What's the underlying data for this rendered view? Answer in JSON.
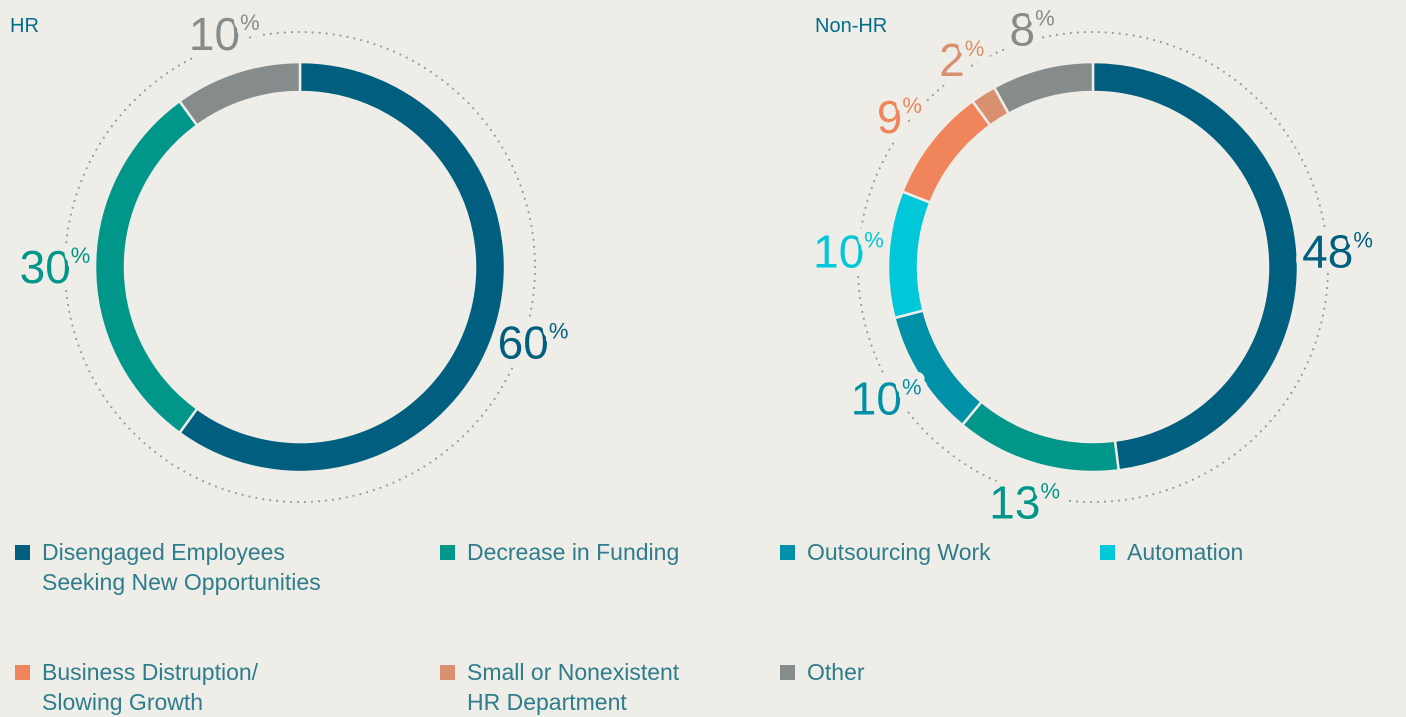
{
  "chart_data": [
    {
      "type": "pie",
      "title": "HR",
      "unit": "%",
      "categories": [
        "Disengaged Employees Seeking New Opportunities",
        "Decrease in Funding",
        "Other"
      ],
      "values": [
        60,
        30,
        10
      ],
      "colors": [
        "#005f7f",
        "#00968a",
        "#868b8b"
      ]
    },
    {
      "type": "pie",
      "title": "Non-HR",
      "unit": "%",
      "categories": [
        "Disengaged Employees Seeking New Opportunities",
        "Decrease in Funding",
        "Outsourcing Work",
        "Automation",
        "Business Distruption/ Slowing Growth",
        "Small or Nonexistent HR Department",
        "Other"
      ],
      "values": [
        48,
        13,
        10,
        10,
        9,
        2,
        8
      ],
      "colors": [
        "#005f7f",
        "#00968a",
        "#0090a8",
        "#00c8d8",
        "#f0845a",
        "#d9906e",
        "#868b8b"
      ]
    }
  ],
  "legend": {
    "items": [
      {
        "label": "Disengaged Employees\nSeeking New Opportunities",
        "color": "#005f7f"
      },
      {
        "label": "Decrease in Funding",
        "color": "#00968a"
      },
      {
        "label": "Outsourcing Work",
        "color": "#0090a8"
      },
      {
        "label": "Automation",
        "color": "#00c8d8"
      },
      {
        "label": "Business Distruption/\nSlowing Growth",
        "color": "#f0845a"
      },
      {
        "label": "Small or Nonexistent\nHR Department",
        "color": "#d9906e"
      },
      {
        "label": "Other",
        "color": "#868b8b"
      }
    ]
  }
}
